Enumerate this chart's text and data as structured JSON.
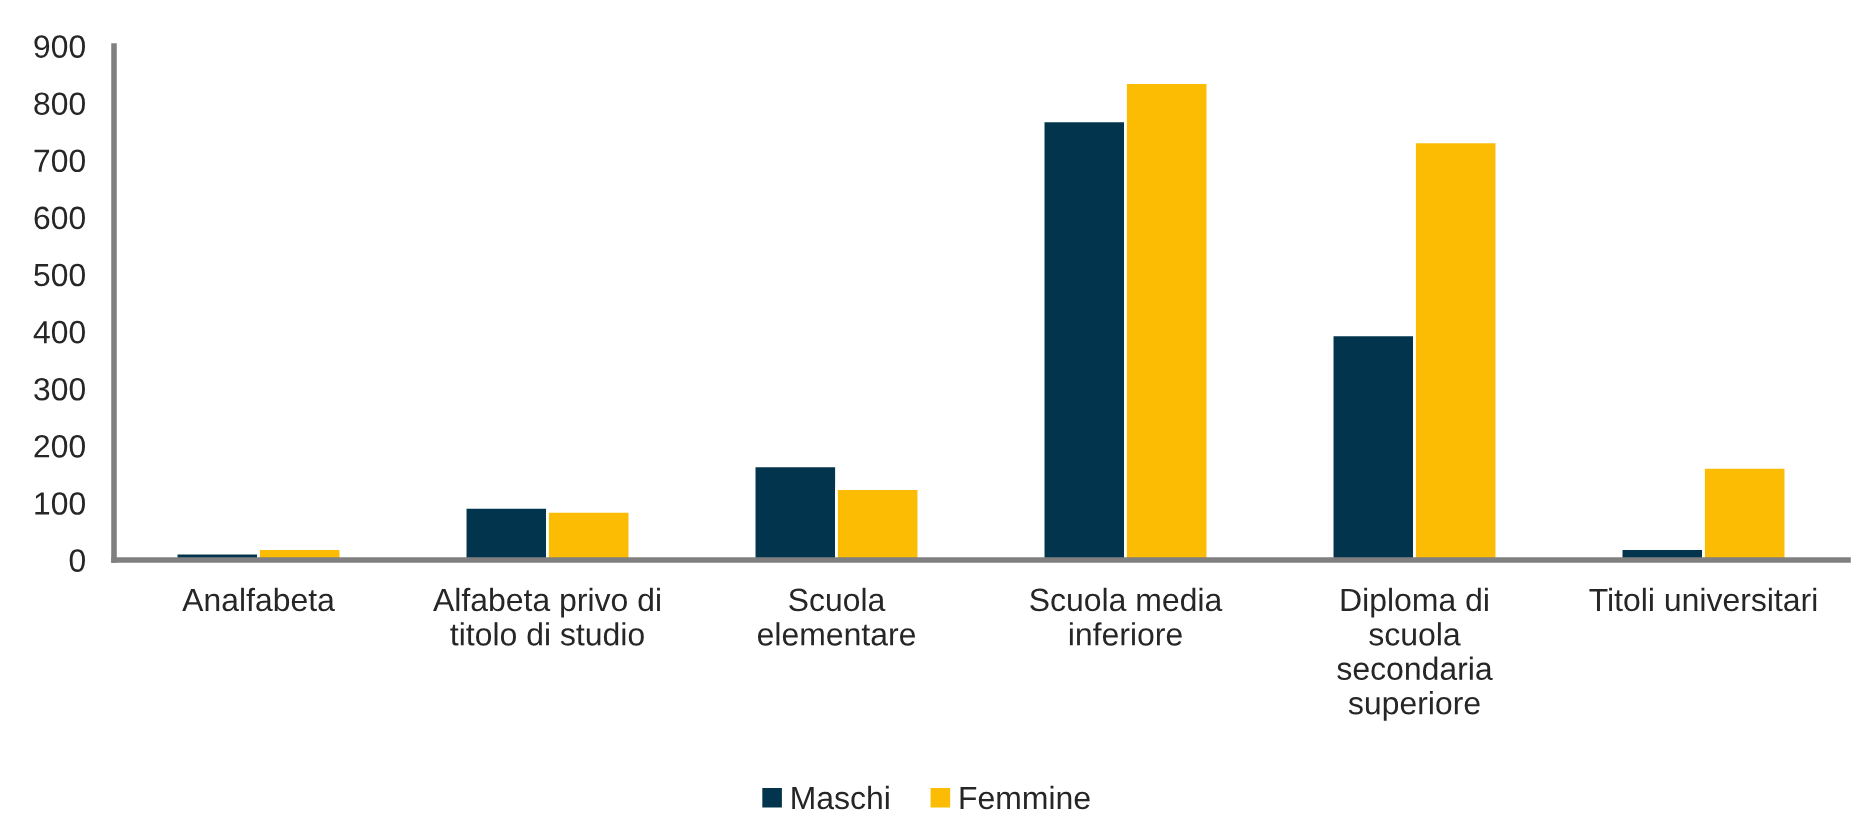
{
  "chart_data": {
    "type": "bar",
    "categories": [
      "Analfabeta",
      "Alfabeta privo di\ntitolo di studio",
      "Scuola\nelementare",
      "Scuola media\ninferiore",
      "Diploma di\nscuola\nsecondaria\nsuperiore",
      "Titoli universitari"
    ],
    "series": [
      {
        "name": "Maschi",
        "color": "#02344d",
        "values": [
          12,
          92,
          165,
          769,
          394,
          20
        ]
      },
      {
        "name": "Femmine",
        "color": "#fbbc03",
        "values": [
          20,
          85,
          125,
          836,
          732,
          162
        ]
      }
    ],
    "ylim": [
      0,
      900
    ],
    "yticks": [
      0,
      100,
      200,
      300,
      400,
      500,
      600,
      700,
      800,
      900
    ],
    "grid": false,
    "legend": "bottom"
  }
}
